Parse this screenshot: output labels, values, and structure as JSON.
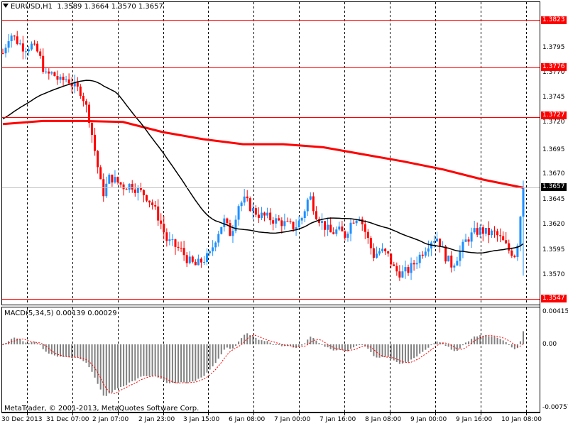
{
  "window": {
    "symbol_title": "EURUSD,H1",
    "ohlc": "1.3589 1.3664 1.3570 1.3657",
    "copyright": "MetaTrader, © 2001-2013, MetaQuotes Software Corp."
  },
  "macd": {
    "title": "MACD(5,34,5) 0.00139 0.00029",
    "axis_labels": [
      "0.00415",
      "0.00",
      "-0.00757"
    ]
  },
  "price_axis": {
    "ticks": [
      "1.3795",
      "1.3770",
      "1.3745",
      "1.3720",
      "1.3695",
      "1.3670",
      "1.3645",
      "1.3620",
      "1.3595",
      "1.3570"
    ]
  },
  "price_lines": [
    {
      "value": "1.3823",
      "color": "#ff0000"
    },
    {
      "value": "1.3776",
      "color": "#ff0000"
    },
    {
      "value": "1.3727",
      "color": "#ff0000"
    },
    {
      "value": "1.3547",
      "color": "#ff0000"
    }
  ],
  "current_price": {
    "value": "1.3657",
    "bg": "#000000",
    "fg": "#ffffff"
  },
  "time_axis": {
    "labels": [
      "30 Dec 2013",
      "31 Dec 07:00",
      "2 Jan 07:00",
      "2 Jan 23:00",
      "3 Jan 15:00",
      "6 Jan 08:00",
      "7 Jan 00:00",
      "7 Jan 16:00",
      "8 Jan 08:00",
      "9 Jan 00:00",
      "9 Jan 16:00",
      "10 Jan 08:00"
    ]
  },
  "colors": {
    "bull_candle": "#1e90ff",
    "bear_candle": "#ff0000",
    "ma_slow": "#ff0000",
    "ma_fast": "#000000",
    "macd_hist": "#808080",
    "macd_signal": "#ff0000",
    "grid": "#000000"
  },
  "chart_data": {
    "type": "candlestick",
    "symbol": "EURUSD",
    "timeframe": "H1",
    "ylim": [
      1.3547,
      1.383
    ],
    "close_path": [
      1.379,
      1.381,
      1.3802,
      1.3795,
      1.3798,
      1.379,
      1.3768,
      1.377,
      1.3762,
      1.3765,
      1.3757,
      1.3752,
      1.373,
      1.369,
      1.365,
      1.3668,
      1.3663,
      1.3658,
      1.366,
      1.3654,
      1.365,
      1.364,
      1.3625,
      1.3605,
      1.36,
      1.3595,
      1.3585,
      1.358,
      1.3585,
      1.359,
      1.361,
      1.3625,
      1.361,
      1.364,
      1.3645,
      1.3635,
      1.363,
      1.3628,
      1.3625,
      1.3623,
      1.362,
      1.3618,
      1.3628,
      1.365,
      1.363,
      1.362,
      1.3612,
      1.3615,
      1.361,
      1.3625,
      1.363,
      1.361,
      1.359,
      1.3595,
      1.359,
      1.3575,
      1.3572,
      1.3576,
      1.3585,
      1.3595,
      1.3605,
      1.3608,
      1.359,
      1.358,
      1.3592,
      1.3605,
      1.3612,
      1.3615,
      1.3612,
      1.3612,
      1.3605,
      1.3595,
      1.359,
      1.3657
    ]
  }
}
